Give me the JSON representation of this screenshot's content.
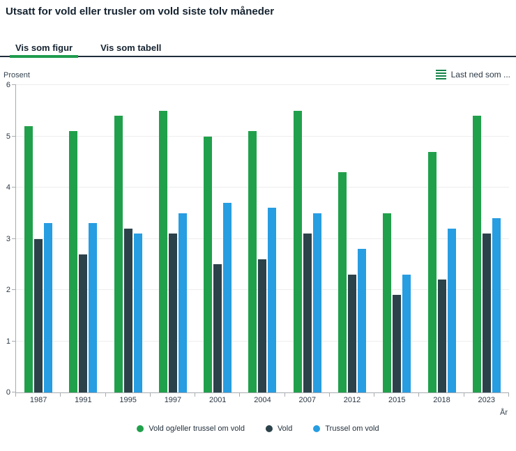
{
  "title": "Utsatt for vold eller trusler om vold siste tolv måneder",
  "tabs": [
    {
      "label": "Vis som figur",
      "active": true
    },
    {
      "label": "Vis som tabell",
      "active": false
    }
  ],
  "download_menu": {
    "label": "Last ned som ...",
    "icon": "hamburger-menu-icon"
  },
  "chart_data": {
    "type": "bar",
    "title": "Utsatt for vold eller trusler om vold siste tolv måneder",
    "ylabel": "Prosent",
    "xlabel": "År",
    "ylim": [
      0,
      6
    ],
    "yticks": [
      0,
      1,
      2,
      3,
      4,
      5,
      6
    ],
    "grid": true,
    "legend_position": "bottom",
    "categories": [
      "1987",
      "1991",
      "1995",
      "1997",
      "2001",
      "2004",
      "2007",
      "2012",
      "2015",
      "2018",
      "2023"
    ],
    "series": [
      {
        "name": "Vold og/eller trussel om vold",
        "color": "#21a04b",
        "values": [
          5.2,
          5.1,
          5.4,
          5.5,
          5.0,
          5.1,
          5.5,
          4.3,
          3.5,
          4.7,
          5.4
        ]
      },
      {
        "name": "Vold",
        "color": "#2c424b",
        "values": [
          3.0,
          2.7,
          3.2,
          3.1,
          2.5,
          2.6,
          3.1,
          2.3,
          1.9,
          2.2,
          3.1
        ]
      },
      {
        "name": "Trussel om vold",
        "color": "#279de2",
        "values": [
          3.3,
          3.3,
          3.1,
          3.5,
          3.7,
          3.6,
          3.5,
          2.8,
          2.3,
          3.2,
          3.4
        ]
      }
    ]
  },
  "colors": {
    "accent_green": "#1e9b4e",
    "tab_border_dark": "#1f2d3b",
    "axis_gray": "#a7abb0",
    "gridline": "#ededed",
    "text_dark": "#152330"
  }
}
